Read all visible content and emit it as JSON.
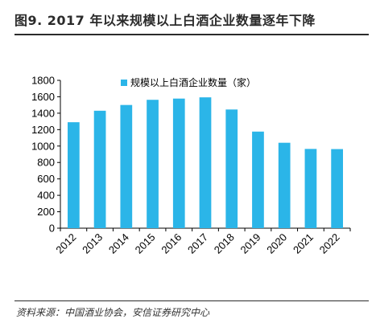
{
  "header": {
    "title": "图9. 2017 年以来规模以上白酒企业数量逐年下降"
  },
  "footer": {
    "source": "资料来源：中国酒业协会，安信证券研究中心"
  },
  "colors": {
    "bar": "#2bb5e8",
    "axis": "#000000"
  },
  "chart_data": {
    "type": "bar",
    "categories": [
      "2012",
      "2013",
      "2014",
      "2015",
      "2016",
      "2017",
      "2018",
      "2019",
      "2020",
      "2021",
      "2022"
    ],
    "series": [
      {
        "name": "规模以上白酒企业数量（家）",
        "values": [
          1290,
          1430,
          1500,
          1563,
          1578,
          1593,
          1445,
          1176,
          1040,
          965,
          963
        ]
      }
    ],
    "ylim": [
      0,
      1800
    ],
    "yticks": [
      0,
      200,
      400,
      600,
      800,
      1000,
      1200,
      1400,
      1600,
      1800
    ],
    "grid": false,
    "legend_position": "top-left"
  }
}
